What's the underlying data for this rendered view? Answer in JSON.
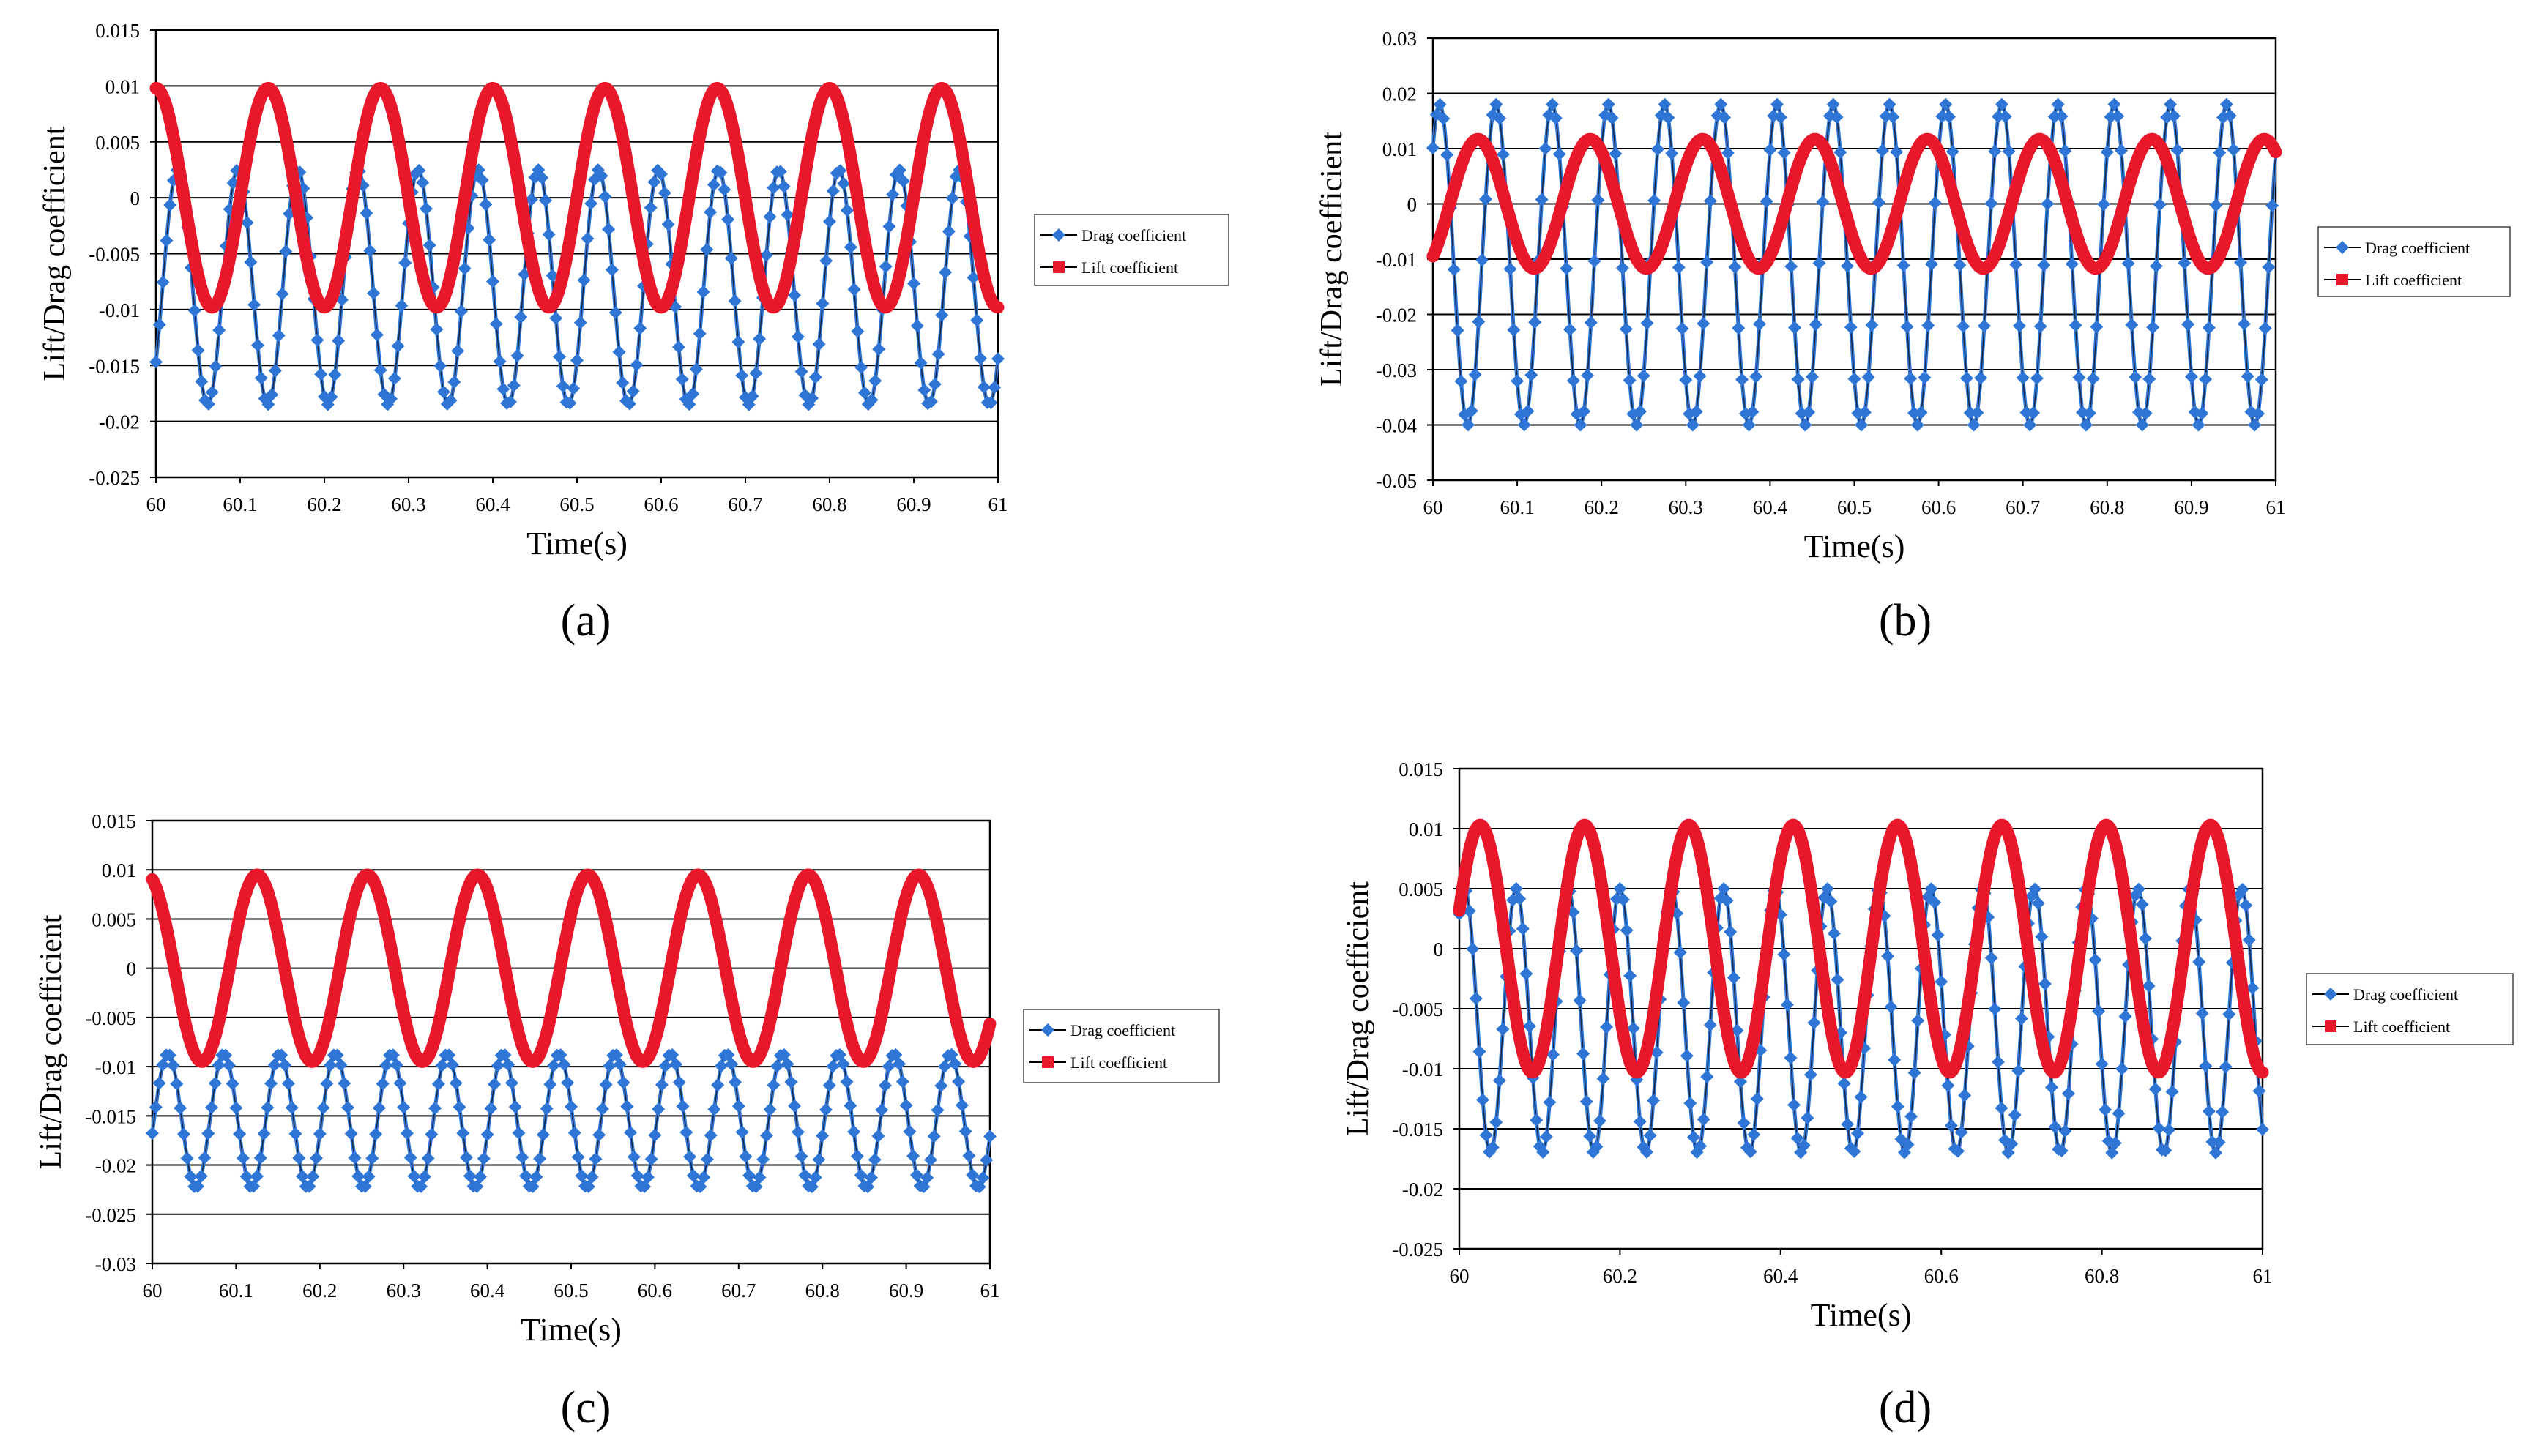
{
  "chart_data": [
    {
      "panel": "(a)",
      "type": "line",
      "xlabel": "Time(s)",
      "ylabel": "Lift/Drag  coefficient",
      "xlim": [
        60,
        61
      ],
      "ylim": [
        -0.025,
        0.015
      ],
      "xticks": [
        "60",
        "60.1",
        "60.2",
        "60.3",
        "60.4",
        "60.5",
        "60.6",
        "60.7",
        "60.8",
        "60.9",
        "61"
      ],
      "yticks": [
        "0.015",
        "0.01",
        "0.005",
        "0",
        "-0.005",
        "-0.01",
        "-0.015",
        "-0.02",
        "-0.025"
      ],
      "gridlines": [
        0.01,
        0.005,
        0,
        -0.005,
        -0.01,
        -0.015,
        -0.02
      ],
      "series": [
        {
          "name": "Drag coefficient",
          "color": "#2e75d6",
          "marker": "diamond",
          "wave": {
            "mean": -0.008,
            "amp": 0.0105,
            "period": 0.0714,
            "phase": 0.64
          }
        },
        {
          "name": "Lift coefficient",
          "color": "#e8172a",
          "marker": "square",
          "wave": {
            "mean": 0.0,
            "amp": 0.0098,
            "period": 0.1333,
            "phase": 0.0
          }
        }
      ]
    },
    {
      "panel": "(b)",
      "type": "line",
      "xlabel": "Time(s)",
      "ylabel": "Lift/Drag  coefficient",
      "xlim": [
        60,
        61
      ],
      "ylim": [
        -0.05,
        0.03
      ],
      "xticks": [
        "60",
        "60.1",
        "60.2",
        "60.3",
        "60.4",
        "60.5",
        "60.6",
        "60.7",
        "60.8",
        "60.9",
        "61"
      ],
      "yticks": [
        "0.03",
        "0.02",
        "0.01",
        "0",
        "-0.01",
        "-0.02",
        "-0.03",
        "-0.04",
        "-0.05"
      ],
      "gridlines": [
        0.02,
        0.01,
        0,
        -0.01,
        -0.02,
        -0.03,
        -0.04
      ],
      "series": [
        {
          "name": "Drag coefficient",
          "color": "#2e75d6",
          "marker": "diamond",
          "wave": {
            "mean": -0.011,
            "amp": 0.029,
            "period": 0.0667,
            "phase": 0.88
          }
        },
        {
          "name": "Lift coefficient",
          "color": "#e8172a",
          "marker": "square",
          "wave": {
            "mean": 0.0,
            "amp": 0.0117,
            "period": 0.1333,
            "phase": 0.6
          }
        }
      ]
    },
    {
      "panel": "(c)",
      "type": "line",
      "xlabel": "Time(s)",
      "ylabel": "Lift/Drag  coefficient",
      "xlim": [
        60,
        61
      ],
      "ylim": [
        -0.03,
        0.015
      ],
      "xticks": [
        "60",
        "60.1",
        "60.2",
        "60.3",
        "60.4",
        "60.5",
        "60.6",
        "60.7",
        "60.8",
        "60.9",
        "61"
      ],
      "yticks": [
        "0.015",
        "0.01",
        "0.005",
        "0",
        "-0.005",
        "-0.01",
        "-0.015",
        "-0.02",
        "-0.025",
        "-0.03"
      ],
      "gridlines": [
        0.01,
        0.005,
        0,
        -0.005,
        -0.01,
        -0.015,
        -0.02,
        -0.025
      ],
      "series": [
        {
          "name": "Drag coefficient",
          "color": "#2e75d6",
          "marker": "diamond",
          "wave": {
            "mean": -0.0155,
            "amp": 0.0068,
            "period": 0.0667,
            "phase": 0.72
          }
        },
        {
          "name": "Lift coefficient",
          "color": "#e8172a",
          "marker": "square",
          "wave": {
            "mean": 0.0,
            "amp": 0.0095,
            "period": 0.1316,
            "phase": 0.05
          }
        }
      ]
    },
    {
      "panel": "(d)",
      "type": "line",
      "xlabel": "Time(s)",
      "ylabel": "Lift/Drag  coefficient",
      "xlim": [
        60,
        61
      ],
      "ylim": [
        -0.025,
        0.015
      ],
      "xticks": [
        "60",
        "60.2",
        "60.4",
        "60.6",
        "60.8",
        "61"
      ],
      "yticks": [
        "0.015",
        "0.01",
        "0.005",
        "0",
        "-0.005",
        "-0.01",
        "-0.015",
        "-0.02",
        "-0.025"
      ],
      "gridlines": [
        0.01,
        0.005,
        0,
        -0.005,
        -0.01,
        -0.015,
        -0.02
      ],
      "series": [
        {
          "name": "Drag coefficient",
          "color": "#2e75d6",
          "marker": "diamond",
          "wave": {
            "mean": -0.006,
            "amp": 0.011,
            "period": 0.0645,
            "phase": 0.9
          }
        },
        {
          "name": "Lift coefficient",
          "color": "#e8172a",
          "marker": "square",
          "wave": {
            "mean": 0.0,
            "amp": 0.0103,
            "period": 0.1299,
            "phase": 0.8
          }
        }
      ]
    }
  ]
}
